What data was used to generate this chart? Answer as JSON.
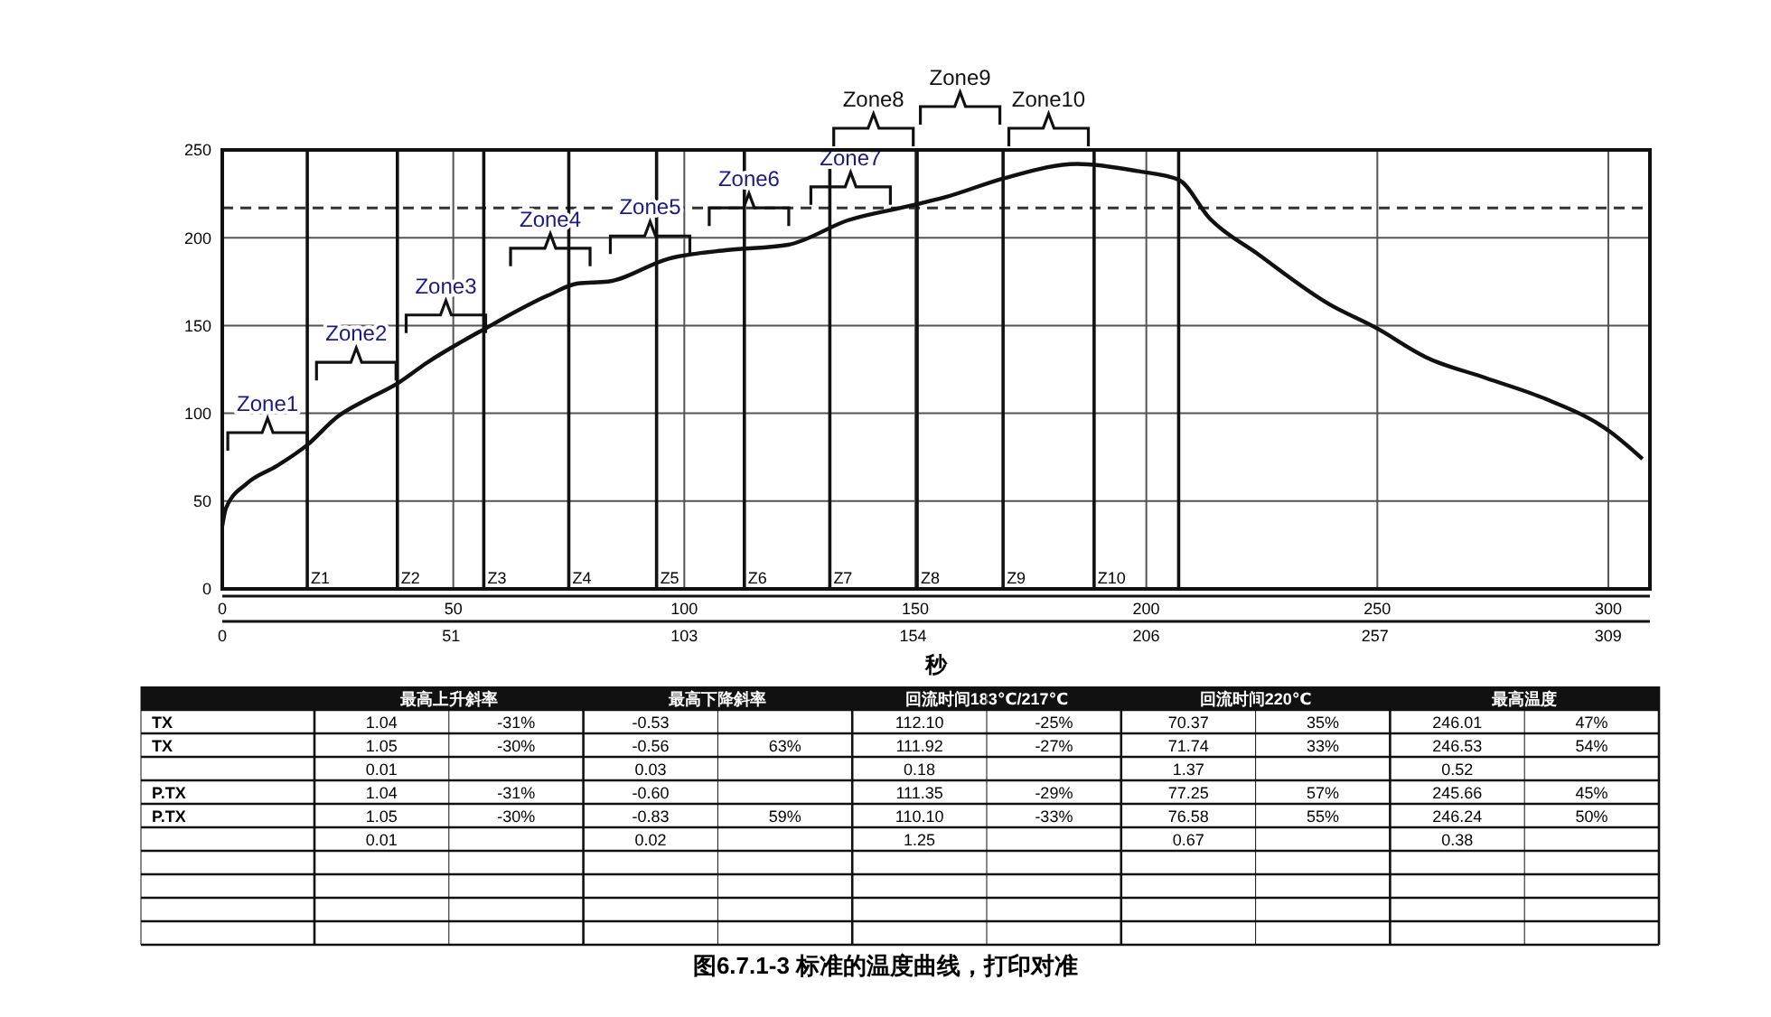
{
  "chart_data": [
    {
      "type": "line",
      "title": "图6.7.1-3 标准的温度曲线，打印对准",
      "xlabel": "秒",
      "series": [
        {
          "color": "#111111",
          "x": [
            0,
            0.8,
            5.3,
            11.8,
            18.4,
            24.9,
            31.4,
            37.9,
            44.4,
            57.4,
            70.4,
            77,
            83.5,
            96.5,
            109.5,
            122.5,
            135.5,
            148.6,
            156.4,
            169.4,
            185,
            198,
            207,
            213.7,
            224,
            239.7,
            249.5,
            260.5,
            273.6,
            286.6,
            299.6,
            307.4
          ],
          "values": [
            36,
            46,
            60,
            70,
            82,
            98,
            108,
            117,
            129,
            149,
            167,
            174,
            175,
            188,
            193,
            196,
            210,
            218,
            223,
            234,
            242,
            238,
            233,
            211,
            191,
            162,
            149,
            132,
            120,
            108,
            91,
            74
          ]
        }
      ],
      "xlim": [
        0,
        309
      ],
      "xticks": [
        0,
        50,
        100,
        150,
        200,
        250,
        300
      ],
      "x2lim": [
        0,
        318.3
      ],
      "x2ticks": [
        0,
        51,
        103,
        154,
        206,
        257,
        309
      ],
      "ylim": [
        0,
        250
      ],
      "yticks": [
        0,
        50,
        100,
        150,
        200,
        250
      ],
      "grid": true,
      "line_style": "solid",
      "ref_lines": [
        {
          "axis": "y",
          "value": 217,
          "line_style": "dashed"
        },
        {
          "axis": "x",
          "value": 18.4,
          "label": "Z1"
        },
        {
          "axis": "x",
          "value": 37.9,
          "label": "Z2"
        },
        {
          "axis": "x",
          "value": 56.6,
          "label": "Z3"
        },
        {
          "axis": "x",
          "value": 75,
          "label": "Z4"
        },
        {
          "axis": "x",
          "value": 94,
          "label": "Z5"
        },
        {
          "axis": "x",
          "value": 113,
          "label": "Z6"
        },
        {
          "axis": "x",
          "value": 131.5,
          "label": "Z7"
        },
        {
          "axis": "x",
          "value": 150.4,
          "label": "Z8"
        },
        {
          "axis": "x",
          "value": 169,
          "label": "Z9"
        },
        {
          "axis": "x",
          "value": 188.7,
          "label": "Z10"
        },
        {
          "axis": "x",
          "value": 207
        }
      ],
      "annotations": [
        {
          "text": "Zone1",
          "x": 9.8,
          "y": 89
        },
        {
          "text": "Zone2",
          "x": 29,
          "y": 129
        },
        {
          "text": "Zone3",
          "x": 48.4,
          "y": 156
        },
        {
          "text": "Zone4",
          "x": 71,
          "y": 194
        },
        {
          "text": "Zone5",
          "x": 92.6,
          "y": 201
        },
        {
          "text": "Zone6",
          "x": 114,
          "y": 217
        },
        {
          "text": "Zone7",
          "x": 136,
          "y": 229
        },
        "Zone8",
        "Zone9",
        "Zone10"
      ]
    },
    {
      "type": "other",
      "categories": [
        "最高上升斜率",
        "最高下降斜率",
        "回流时间183℃/217℃",
        "回流时间220℃",
        "最高温度"
      ],
      "annotations": [
        "TX",
        "1.04",
        "-31%",
        "-0.53",
        null,
        "112.10",
        "-25%",
        "70.37",
        "35%",
        "246.01",
        "47%",
        "TX",
        "1.05",
        "-30%",
        "-0.56",
        "63%",
        "111.92",
        "-27%",
        "71.74",
        "33%",
        "246.53",
        "54%",
        null,
        "0.01",
        null,
        "0.03",
        null,
        "0.18",
        null,
        "1.37",
        null,
        "0.52",
        null,
        "P.TX",
        "1.04",
        "-31%",
        "-0.60",
        null,
        "111.35",
        "-29%",
        "77.25",
        "57%",
        "245.66",
        "45%",
        "P.TX",
        "1.05",
        "-30%",
        "-0.83",
        "59%",
        "110.10",
        "-33%",
        "76.58",
        "55%",
        "246.24",
        "50%",
        null,
        "0.01",
        null,
        "0.02",
        null,
        "1.25",
        null,
        "0.67",
        null,
        "0.38",
        null
      ]
    }
  ]
}
